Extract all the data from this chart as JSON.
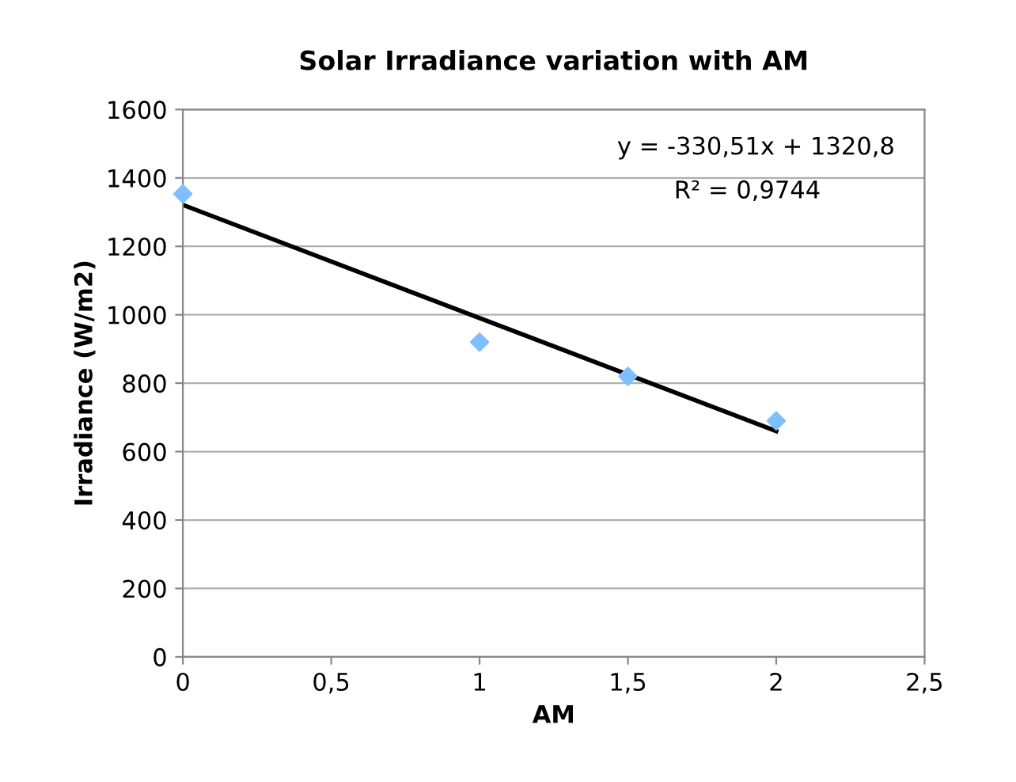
{
  "chart_data": {
    "type": "scatter",
    "title": "Solar Irradiance variation with AM",
    "xlabel": "AM",
    "ylabel": "Irradiance (W/m2)",
    "series": [
      {
        "color": "#7fbfff",
        "x": [
          0,
          1,
          1.5,
          2
        ],
        "values": [
          1353,
          920,
          820,
          690
        ],
        "marker": "diamond"
      },
      {
        "type": "line",
        "color": "#000000",
        "x": [
          0,
          2
        ],
        "values": [
          1321,
          660
        ],
        "marker": "none",
        "line_style": "solid"
      }
    ],
    "xlim": [
      0,
      2.5
    ],
    "xticks": [
      0,
      {
        "value": 0.5,
        "label": "0,5"
      },
      1,
      {
        "value": 1.5,
        "label": "1,5"
      },
      2,
      {
        "value": 2.5,
        "label": "2,5"
      }
    ],
    "ylim": [
      0,
      1600
    ],
    "yticks": [
      0,
      200,
      400,
      600,
      800,
      1000,
      1200,
      1400,
      1600
    ],
    "grid": "y",
    "legend": false,
    "annotations": [
      "y = -330,51x + 1320,8",
      "R² = 0,9744"
    ]
  }
}
